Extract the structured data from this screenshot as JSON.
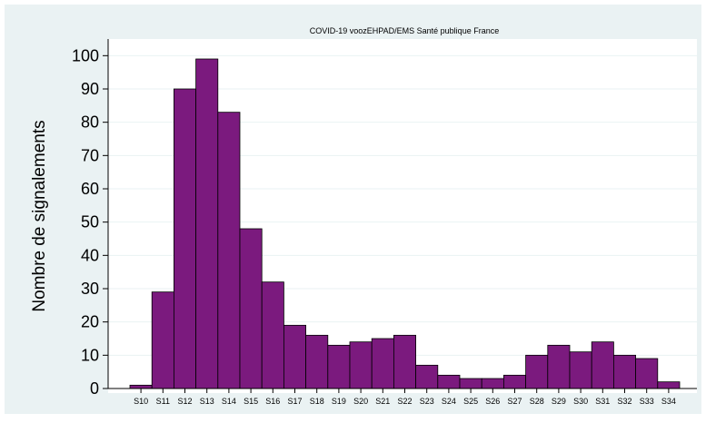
{
  "chart_data": {
    "type": "bar",
    "title": "COVID-19 voozEHPAD/EMS Santé publique France",
    "xlabel": "",
    "ylabel": "Nombre de signalements",
    "ylim": [
      0,
      105
    ],
    "yticks": [
      0,
      10,
      20,
      30,
      40,
      50,
      60,
      70,
      80,
      90,
      100
    ],
    "categories": [
      "S10",
      "S11",
      "S12",
      "S13",
      "S14",
      "S15",
      "S16",
      "S17",
      "S18",
      "S19",
      "S20",
      "S21",
      "S22",
      "S23",
      "S24",
      "S25",
      "S26",
      "S27",
      "S28",
      "S29",
      "S30",
      "S31",
      "S32",
      "S33",
      "S34"
    ],
    "values": [
      1,
      29,
      90,
      99,
      83,
      48,
      32,
      19,
      16,
      13,
      14,
      15,
      16,
      7,
      4,
      3,
      3,
      4,
      10,
      13,
      11,
      14,
      10,
      9,
      2
    ],
    "bar_color": "#7b1a7e",
    "grid": true,
    "legend": "none"
  }
}
